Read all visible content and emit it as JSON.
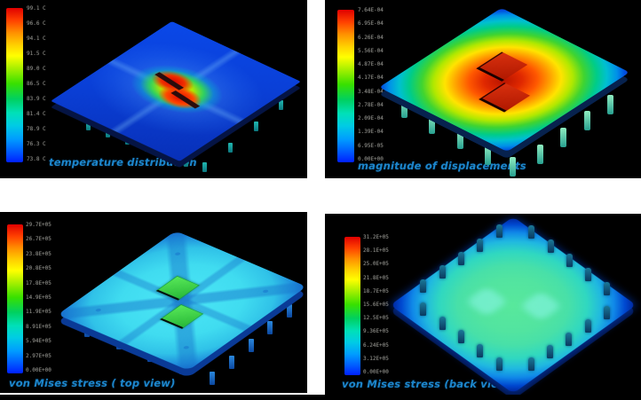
{
  "figure": {
    "description": "2x2 grid of finite-element simulation renderings of a chip package",
    "colors": {
      "page_bg": "#ffffff",
      "panel_bg": "#000000",
      "caption_text": "#1d86cc",
      "colorbar_top": "#e00000",
      "colorbar_bottom": "#0020ff"
    }
  },
  "panels": [
    {
      "id": "temperature",
      "caption": "temperature distribution",
      "colorbar_ticks": [
        "99.1 C",
        "96.6 C",
        "94.1 C",
        "91.5 C",
        "89.0 C",
        "86.5 C",
        "83.9 C",
        "81.4 C",
        "78.9 C",
        "76.3 C",
        "73.8 C"
      ]
    },
    {
      "id": "displacements",
      "caption": "magnitude of displacements",
      "colorbar_ticks": [
        "7.64E-04",
        "6.95E-04",
        "6.26E-04",
        "5.56E-04",
        "4.87E-04",
        "4.17E-04",
        "3.48E-04",
        "2.78E-04",
        "2.09E-04",
        "1.39E-04",
        "6.95E-05",
        "0.00E+00"
      ]
    },
    {
      "id": "vonmises_top",
      "caption": "von Mises stress ( top view)",
      "colorbar_ticks": [
        "29.7E+05",
        "26.7E+05",
        "23.8E+05",
        "20.8E+05",
        "17.8E+05",
        "14.9E+05",
        "11.9E+05",
        "8.91E+05",
        "5.94E+05",
        "2.97E+05",
        "0.00E+00"
      ]
    },
    {
      "id": "vonmises_back",
      "caption": "von Mises stress (back view)",
      "colorbar_ticks": [
        "31.2E+05",
        "28.1E+05",
        "25.0E+05",
        "21.8E+05",
        "18.7E+05",
        "15.6E+05",
        "12.5E+05",
        "9.36E+05",
        "6.24E+05",
        "3.12E+05",
        "0.00E+00"
      ]
    }
  ],
  "chart_data": [
    {
      "type": "heatmap",
      "title": "temperature distribution",
      "legend_ticks": [
        "99.1 C",
        "96.6 C",
        "94.1 C",
        "91.5 C",
        "89.0 C",
        "86.5 C",
        "83.9 C",
        "81.4 C",
        "78.9 C",
        "76.3 C",
        "73.8 C"
      ],
      "pattern": "blue plate, elongated red/orange hot spot over two dies at center, green-yellow halo"
    },
    {
      "type": "heatmap",
      "title": "magnitude of displacements",
      "legend_ticks": [
        "7.64E-04",
        "6.95E-04",
        "6.26E-04",
        "5.56E-04",
        "4.87E-04",
        "4.17E-04",
        "3.48E-04",
        "2.78E-04",
        "2.09E-04",
        "1.39E-04",
        "6.95E-05",
        "0.00E+00"
      ],
      "pattern": "concentric rainbow rings: red maximum at center over two dark-red dies, blue minima at plate corners"
    },
    {
      "type": "heatmap",
      "title": "von Mises stress ( top view)",
      "legend_ticks": [
        "29.7E+05",
        "26.7E+05",
        "23.8E+05",
        "20.8E+05",
        "17.8E+05",
        "14.9E+05",
        "11.9E+05",
        "8.91E+05",
        "5.94E+05",
        "2.97E+05",
        "0.00E+00"
      ],
      "pattern": "cyan plate with darker blue stress traces radiating from two green dies at center"
    },
    {
      "type": "heatmap",
      "title": "von Mises stress (back view)",
      "legend_ticks": [
        "31.2E+05",
        "28.1E+05",
        "25.0E+05",
        "21.8E+05",
        "18.7E+05",
        "15.6E+05",
        "12.5E+05",
        "9.36E+05",
        "6.24E+05",
        "3.12E+05",
        "0.00E+00"
      ],
      "pattern": "back of package: green interior, blue rim, ring of pin studs, two lighter patches behind dies"
    }
  ]
}
